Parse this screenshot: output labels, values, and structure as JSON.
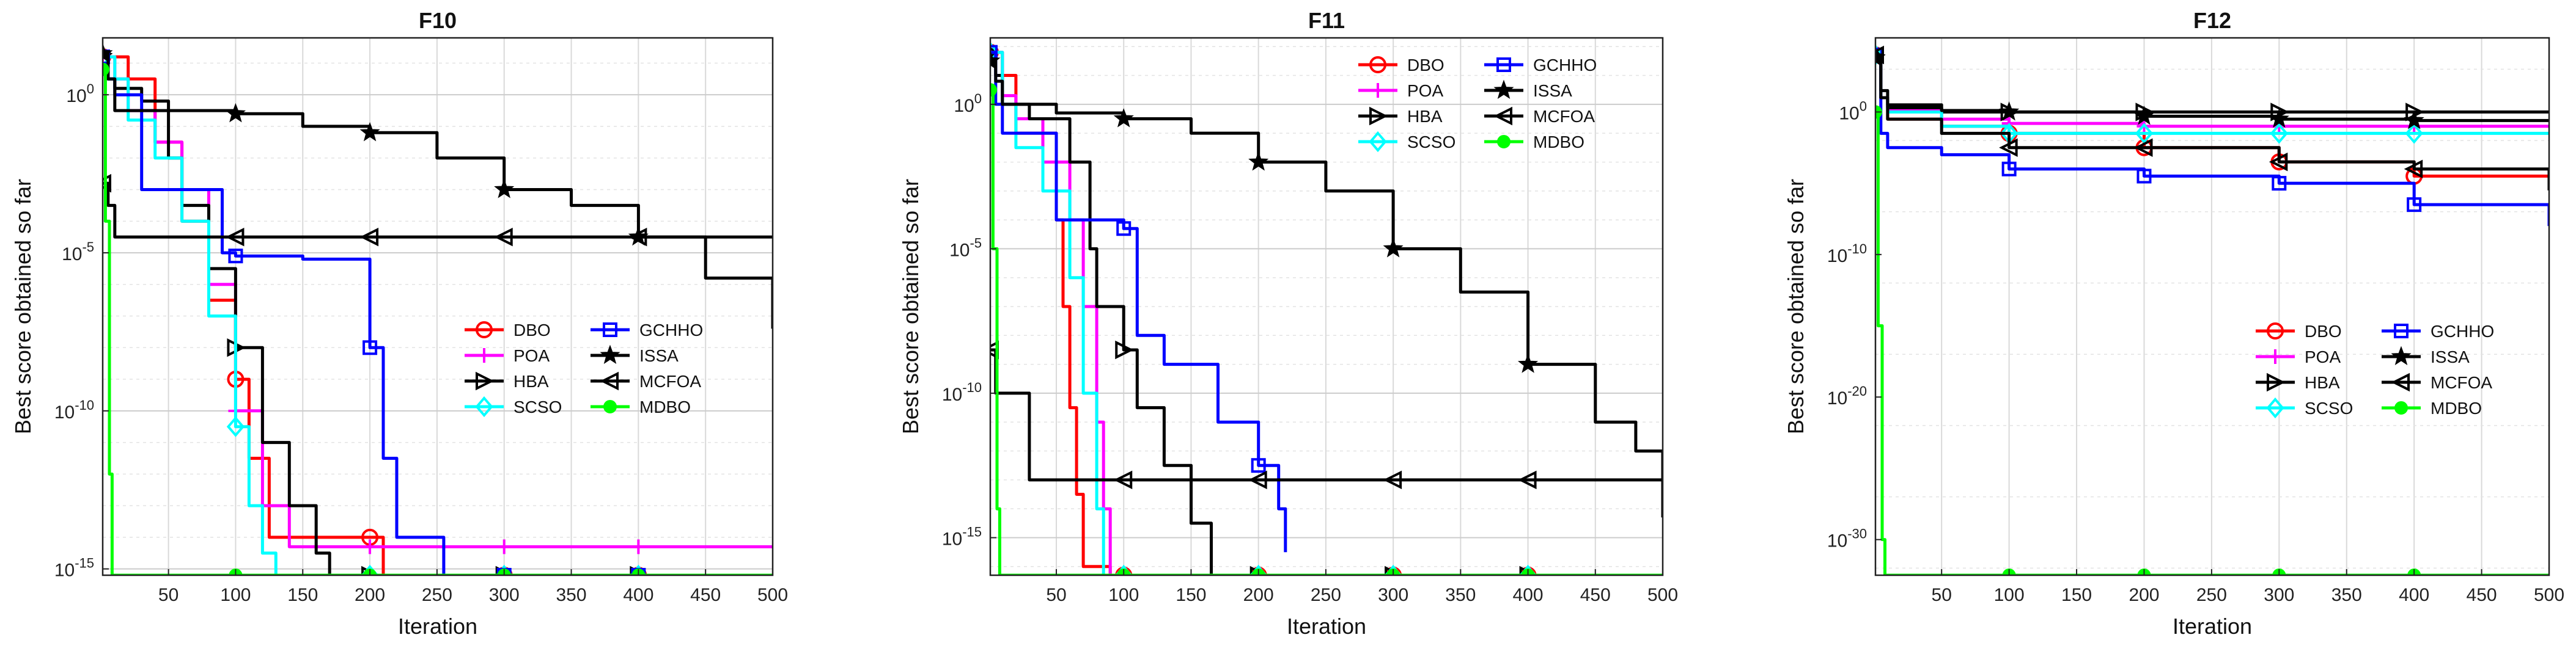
{
  "series_styles": {
    "DBO": {
      "color": "#ff0000",
      "marker": "circle"
    },
    "POA": {
      "color": "#ff00ff",
      "marker": "plus"
    },
    "HBA": {
      "color": "#000000",
      "marker": "tri-right"
    },
    "SCSO": {
      "color": "#00ffff",
      "marker": "diamond"
    },
    "GCHHO": {
      "color": "#0000ff",
      "marker": "square"
    },
    "ISSA": {
      "color": "#000000",
      "marker": "star"
    },
    "MCFOA": {
      "color": "#000000",
      "marker": "tri-left"
    },
    "MDBO": {
      "color": "#00ff00",
      "marker": "dot"
    }
  },
  "chart_data": [
    {
      "type": "line",
      "title": "F10",
      "xlabel": "Iteration",
      "ylabel": "Best score obtained so far",
      "yscale": "log",
      "xlim": [
        1,
        500
      ],
      "ylim_exp": [
        -15.2,
        1.8
      ],
      "xticks": [
        50,
        100,
        150,
        200,
        250,
        300,
        350,
        400,
        450,
        500
      ],
      "yticks": [
        {
          "exp": 0,
          "label": "10",
          "sup": "0"
        },
        {
          "exp": -5,
          "label": "10",
          "sup": "-5"
        },
        {
          "exp": -10,
          "label": "10",
          "sup": "-10"
        },
        {
          "exp": -15,
          "label": "10",
          "sup": "-15"
        }
      ],
      "grid": true,
      "legend": {
        "position": "right-middle",
        "columns": 2,
        "order": [
          "DBO",
          "GCHHO",
          "POA",
          "ISSA",
          "HBA",
          "MCFOA",
          "SCSO",
          "MDBO"
        ]
      },
      "series": [
        {
          "name": "DBO",
          "x": [
            1,
            10,
            20,
            40,
            60,
            80,
            100,
            110,
            125,
            180,
            200,
            210,
            500
          ],
          "log10_y": [
            1.2,
            1.2,
            0.5,
            -1.5,
            -4,
            -6.5,
            -9.0,
            -11.5,
            -14.0,
            -14.0,
            -14.0,
            -15.2,
            -15.2
          ]
        },
        {
          "name": "POA",
          "x": [
            1,
            10,
            20,
            40,
            60,
            80,
            100,
            120,
            140,
            160,
            200,
            300,
            400,
            500
          ],
          "log10_y": [
            1.2,
            0.5,
            -0.5,
            -1.5,
            -3,
            -6,
            -10.0,
            -13.0,
            -14.3,
            -14.3,
            -14.3,
            -14.3,
            -14.3,
            -14.3
          ]
        },
        {
          "name": "HBA",
          "x": [
            1,
            5,
            10,
            30,
            50,
            60,
            80,
            100,
            120,
            140,
            160,
            170,
            500
          ],
          "log10_y": [
            1.3,
            0.5,
            0.2,
            -0.2,
            -2.0,
            -3.5,
            -5.5,
            -8.0,
            -11.0,
            -13.0,
            -14.5,
            -15.2,
            -15.2
          ]
        },
        {
          "name": "SCSO",
          "x": [
            1,
            10,
            20,
            40,
            60,
            80,
            100,
            110,
            120,
            130,
            500
          ],
          "log10_y": [
            1.2,
            0.5,
            -0.8,
            -2.0,
            -4.0,
            -7.0,
            -10.5,
            -13.0,
            -14.5,
            -15.2,
            -15.2
          ]
        },
        {
          "name": "GCHHO",
          "x": [
            1,
            5,
            10,
            30,
            50,
            70,
            90,
            100,
            150,
            185,
            200,
            210,
            220,
            250,
            255,
            300,
            500
          ],
          "log10_y": [
            1.2,
            0.5,
            0,
            -3.0,
            -3.0,
            -3.0,
            -5.0,
            -5.1,
            -5.2,
            -5.2,
            -8.0,
            -11.5,
            -14.0,
            -14.0,
            -15.2,
            -15.2,
            -15.2
          ]
        },
        {
          "name": "ISSA",
          "x": [
            1,
            5,
            10,
            30,
            50,
            80,
            100,
            150,
            200,
            250,
            300,
            350,
            400,
            450,
            500
          ],
          "log10_y": [
            1.3,
            0.5,
            -0.5,
            -0.5,
            -0.5,
            -0.5,
            -0.6,
            -1.0,
            -1.2,
            -2.0,
            -3.0,
            -3.5,
            -4.5,
            -5.8,
            -7.4
          ]
        },
        {
          "name": "MCFOA",
          "x": [
            1,
            5,
            10,
            100,
            200,
            300,
            400,
            500
          ],
          "log10_y": [
            -2.8,
            -3.5,
            -4.5,
            -4.5,
            -4.5,
            -4.5,
            -4.5,
            -4.5
          ]
        },
        {
          "name": "MDBO",
          "x": [
            1,
            3,
            6,
            8,
            10,
            100,
            200,
            300,
            400,
            500
          ],
          "log10_y": [
            0.8,
            -4,
            -12,
            -15.2,
            -15.2,
            -15.2,
            -15.2,
            -15.2,
            -15.2,
            -15.2
          ]
        }
      ]
    },
    {
      "type": "line",
      "title": "F11",
      "xlabel": "Iteration",
      "ylabel": "Best score obtained so far",
      "yscale": "log",
      "xlim": [
        1,
        500
      ],
      "ylim_exp": [
        -16.3,
        2.3
      ],
      "xticks": [
        50,
        100,
        150,
        200,
        250,
        300,
        350,
        400,
        450,
        500
      ],
      "yticks": [
        {
          "exp": 0,
          "label": "10",
          "sup": "0"
        },
        {
          "exp": -5,
          "label": "10",
          "sup": "-5"
        },
        {
          "exp": -10,
          "label": "10",
          "sup": "-10"
        },
        {
          "exp": -15,
          "label": "10",
          "sup": "-15"
        }
      ],
      "grid": true,
      "legend": {
        "position": "top-middle",
        "columns": 2,
        "order": [
          "DBO",
          "GCHHO",
          "POA",
          "ISSA",
          "HBA",
          "MCFOA",
          "SCSO",
          "MDBO"
        ]
      },
      "series": [
        {
          "name": "DBO",
          "x": [
            1,
            10,
            20,
            40,
            50,
            55,
            60,
            65,
            70,
            80,
            90,
            500
          ],
          "log10_y": [
            1.8,
            1.0,
            -1.0,
            -1.0,
            -4.0,
            -7.0,
            -10.5,
            -13.5,
            -16.0,
            -16.0,
            -16.3,
            -16.3
          ]
        },
        {
          "name": "POA",
          "x": [
            1,
            10,
            20,
            40,
            60,
            70,
            80,
            85,
            90,
            500
          ],
          "log10_y": [
            1.8,
            0.3,
            -0.5,
            -2.0,
            -4.0,
            -7.0,
            -11.0,
            -14.0,
            -16.3,
            -16.3
          ]
        },
        {
          "name": "HBA",
          "x": [
            1,
            5,
            10,
            30,
            60,
            75,
            80,
            100,
            110,
            130,
            150,
            165,
            500
          ],
          "log10_y": [
            1.8,
            1.0,
            0,
            -0.5,
            -2.0,
            -5.0,
            -7.0,
            -8.5,
            -10.5,
            -12.5,
            -14.5,
            -16.3,
            -16.3
          ]
        },
        {
          "name": "SCSO",
          "x": [
            1,
            10,
            20,
            40,
            60,
            70,
            80,
            85,
            500
          ],
          "log10_y": [
            1.8,
            0,
            -1.5,
            -3.0,
            -6.0,
            -10.0,
            -14.0,
            -16.3,
            -16.3
          ]
        },
        {
          "name": "GCHHO",
          "x": [
            1,
            5,
            10,
            30,
            50,
            100,
            110,
            130,
            150,
            170,
            200,
            215,
            220
          ],
          "log10_y": [
            1.8,
            0,
            -1.0,
            -1.0,
            -4.0,
            -4.3,
            -8.0,
            -9.0,
            -9.0,
            -11.0,
            -12.5,
            -14.0,
            -15.5
          ]
        },
        {
          "name": "ISSA",
          "x": [
            1,
            5,
            10,
            50,
            100,
            150,
            200,
            250,
            300,
            350,
            400,
            450,
            480,
            500
          ],
          "log10_y": [
            1.5,
            0.8,
            0,
            -0.3,
            -0.5,
            -1.0,
            -2.0,
            -3.0,
            -5.0,
            -6.5,
            -9.0,
            -11.0,
            -12.0,
            -14.3
          ]
        },
        {
          "name": "MCFOA",
          "x": [
            1,
            5,
            20,
            30,
            40,
            100,
            200,
            300,
            400,
            500
          ],
          "log10_y": [
            -8.5,
            -10.0,
            -10.0,
            -13.0,
            -13.0,
            -13.0,
            -13.0,
            -13.0,
            -13.0,
            -14.0
          ]
        },
        {
          "name": "MDBO",
          "x": [
            1,
            3,
            6,
            8,
            10,
            500
          ],
          "log10_y": [
            0.5,
            -5,
            -14,
            -16.3,
            -16.3,
            -16.3
          ]
        }
      ]
    },
    {
      "type": "line",
      "title": "F12",
      "xlabel": "Iteration",
      "ylabel": "Best score obtained so far",
      "yscale": "log",
      "xlim": [
        1,
        500
      ],
      "ylim_exp": [
        -32.5,
        5.2
      ],
      "xticks": [
        50,
        100,
        150,
        200,
        250,
        300,
        350,
        400,
        450,
        500
      ],
      "yticks": [
        {
          "exp": 0,
          "label": "10",
          "sup": "0"
        },
        {
          "exp": -10,
          "label": "10",
          "sup": "-10"
        },
        {
          "exp": -20,
          "label": "10",
          "sup": "-20"
        },
        {
          "exp": -30,
          "label": "10",
          "sup": "-30"
        }
      ],
      "grid": true,
      "legend": {
        "position": "right-middle",
        "columns": 2,
        "order": [
          "DBO",
          "GCHHO",
          "POA",
          "ISSA",
          "HBA",
          "MCFOA",
          "SCSO",
          "MDBO"
        ]
      },
      "series": [
        {
          "name": "DBO",
          "x": [
            1,
            5,
            10,
            50,
            100,
            200,
            300,
            400,
            500
          ],
          "log10_y": [
            4.0,
            1.0,
            -0.5,
            -1.0,
            -1.5,
            -2.5,
            -3.5,
            -4.5,
            -5.0
          ]
        },
        {
          "name": "POA",
          "x": [
            1,
            5,
            10,
            50,
            100,
            200,
            300,
            400,
            500
          ],
          "log10_y": [
            4.0,
            1.0,
            0.2,
            -0.5,
            -0.8,
            -1.0,
            -1.0,
            -1.0,
            -1.0
          ]
        },
        {
          "name": "HBA",
          "x": [
            1,
            5,
            10,
            50,
            100,
            200,
            300,
            400,
            500
          ],
          "log10_y": [
            4.0,
            1.0,
            0.3,
            0,
            0,
            0,
            0,
            0,
            0
          ]
        },
        {
          "name": "SCSO",
          "x": [
            1,
            5,
            10,
            50,
            100,
            200,
            300,
            400,
            500
          ],
          "log10_y": [
            4.0,
            1.0,
            0,
            -1.0,
            -1.5,
            -1.5,
            -1.5,
            -1.5,
            -1.5
          ]
        },
        {
          "name": "GCHHO",
          "x": [
            1,
            5,
            10,
            50,
            100,
            200,
            300,
            400,
            500
          ],
          "log10_y": [
            4.0,
            -1.5,
            -2.5,
            -3.0,
            -4.0,
            -4.5,
            -5.0,
            -6.5,
            -8.0
          ]
        },
        {
          "name": "ISSA",
          "x": [
            1,
            5,
            10,
            50,
            100,
            200,
            300,
            400,
            500
          ],
          "log10_y": [
            3.8,
            1.5,
            0.5,
            0.1,
            0,
            -0.3,
            -0.5,
            -0.6,
            -0.7
          ]
        },
        {
          "name": "MCFOA",
          "x": [
            1,
            5,
            10,
            50,
            100,
            200,
            300,
            400,
            500
          ],
          "log10_y": [
            4.0,
            1.0,
            -0.5,
            -1.5,
            -2.5,
            -2.5,
            -3.5,
            -4.0,
            -5.5
          ]
        },
        {
          "name": "MDBO",
          "x": [
            1,
            3,
            6,
            8,
            10,
            500
          ],
          "log10_y": [
            0,
            -15,
            -30,
            -32.5,
            -32.5,
            -32.5
          ]
        }
      ]
    }
  ]
}
